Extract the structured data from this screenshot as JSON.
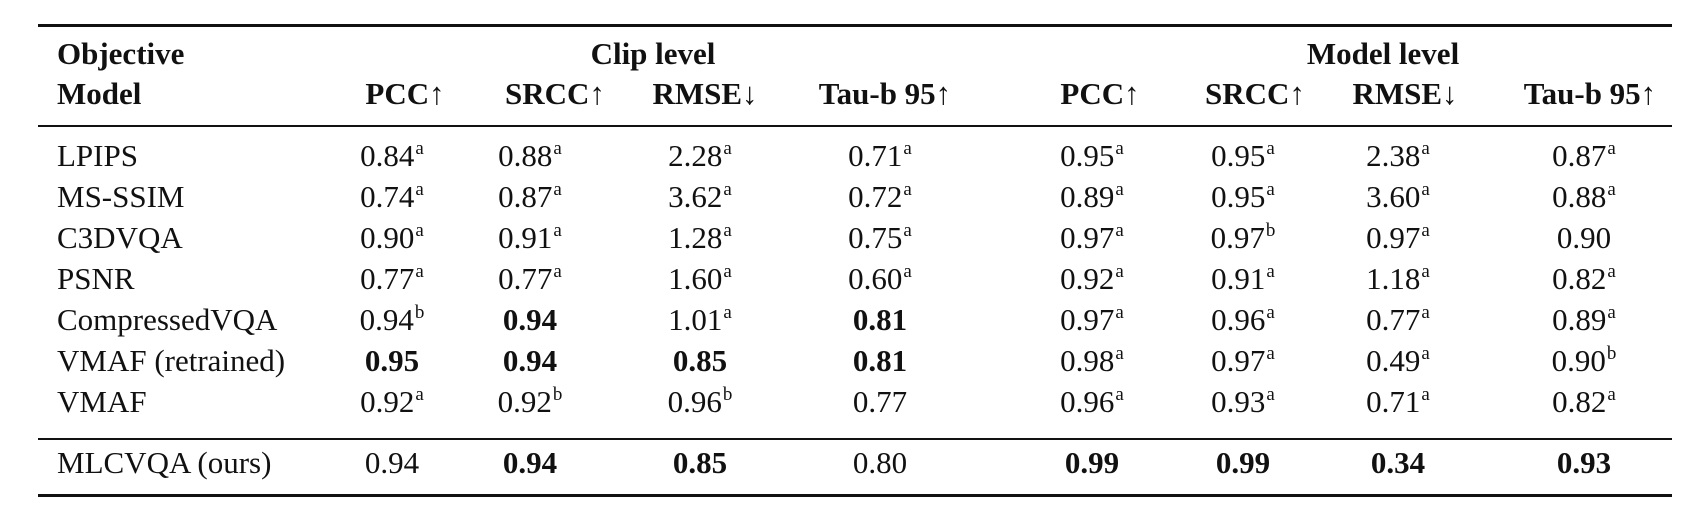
{
  "table": {
    "objective_label": "Objective",
    "model_label": "Model",
    "groups": [
      "Clip level",
      "Model level"
    ],
    "columns": [
      "PCC↑",
      "SRCC↑",
      "RMSE↓",
      "Tau-b 95↑",
      "PCC↑",
      "SRCC↑",
      "RMSE↓",
      "Tau-b 95↑"
    ],
    "rows": [
      {
        "model": "LPIPS",
        "cells": [
          {
            "v": "0.84",
            "s": "a",
            "b": false
          },
          {
            "v": "0.88",
            "s": "a",
            "b": false
          },
          {
            "v": "2.28",
            "s": "a",
            "b": false
          },
          {
            "v": "0.71",
            "s": "a",
            "b": false
          },
          {
            "v": "0.95",
            "s": "a",
            "b": false
          },
          {
            "v": "0.95",
            "s": "a",
            "b": false
          },
          {
            "v": "2.38",
            "s": "a",
            "b": false
          },
          {
            "v": "0.87",
            "s": "a",
            "b": false
          }
        ]
      },
      {
        "model": "MS-SSIM",
        "cells": [
          {
            "v": "0.74",
            "s": "a",
            "b": false
          },
          {
            "v": "0.87",
            "s": "a",
            "b": false
          },
          {
            "v": "3.62",
            "s": "a",
            "b": false
          },
          {
            "v": "0.72",
            "s": "a",
            "b": false
          },
          {
            "v": "0.89",
            "s": "a",
            "b": false
          },
          {
            "v": "0.95",
            "s": "a",
            "b": false
          },
          {
            "v": "3.60",
            "s": "a",
            "b": false
          },
          {
            "v": "0.88",
            "s": "a",
            "b": false
          }
        ]
      },
      {
        "model": "C3DVQA",
        "cells": [
          {
            "v": "0.90",
            "s": "a",
            "b": false
          },
          {
            "v": "0.91",
            "s": "a",
            "b": false
          },
          {
            "v": "1.28",
            "s": "a",
            "b": false
          },
          {
            "v": "0.75",
            "s": "a",
            "b": false
          },
          {
            "v": "0.97",
            "s": "a",
            "b": false
          },
          {
            "v": "0.97",
            "s": "b",
            "b": false
          },
          {
            "v": "0.97",
            "s": "a",
            "b": false
          },
          {
            "v": "0.90",
            "s": "",
            "b": false
          }
        ]
      },
      {
        "model": "PSNR",
        "cells": [
          {
            "v": "0.77",
            "s": "a",
            "b": false
          },
          {
            "v": "0.77",
            "s": "a",
            "b": false
          },
          {
            "v": "1.60",
            "s": "a",
            "b": false
          },
          {
            "v": "0.60",
            "s": "a",
            "b": false
          },
          {
            "v": "0.92",
            "s": "a",
            "b": false
          },
          {
            "v": "0.91",
            "s": "a",
            "b": false
          },
          {
            "v": "1.18",
            "s": "a",
            "b": false
          },
          {
            "v": "0.82",
            "s": "a",
            "b": false
          }
        ]
      },
      {
        "model": "CompressedVQA",
        "cells": [
          {
            "v": "0.94",
            "s": "b",
            "b": false
          },
          {
            "v": "0.94",
            "s": "",
            "b": true
          },
          {
            "v": "1.01",
            "s": "a",
            "b": false
          },
          {
            "v": "0.81",
            "s": "",
            "b": true
          },
          {
            "v": "0.97",
            "s": "a",
            "b": false
          },
          {
            "v": "0.96",
            "s": "a",
            "b": false
          },
          {
            "v": "0.77",
            "s": "a",
            "b": false
          },
          {
            "v": "0.89",
            "s": "a",
            "b": false
          }
        ]
      },
      {
        "model": "VMAF (retrained)",
        "cells": [
          {
            "v": "0.95",
            "s": "",
            "b": true
          },
          {
            "v": "0.94",
            "s": "",
            "b": true
          },
          {
            "v": "0.85",
            "s": "",
            "b": true
          },
          {
            "v": "0.81",
            "s": "",
            "b": true
          },
          {
            "v": "0.98",
            "s": "a",
            "b": false
          },
          {
            "v": "0.97",
            "s": "a",
            "b": false
          },
          {
            "v": "0.49",
            "s": "a",
            "b": false
          },
          {
            "v": "0.90",
            "s": "b",
            "b": false
          }
        ]
      },
      {
        "model": "VMAF",
        "cells": [
          {
            "v": "0.92",
            "s": "a",
            "b": false
          },
          {
            "v": "0.92",
            "s": "b",
            "b": false
          },
          {
            "v": "0.96",
            "s": "b",
            "b": false
          },
          {
            "v": "0.77",
            "s": "",
            "b": false
          },
          {
            "v": "0.96",
            "s": "a",
            "b": false
          },
          {
            "v": "0.93",
            "s": "a",
            "b": false
          },
          {
            "v": "0.71",
            "s": "a",
            "b": false
          },
          {
            "v": "0.82",
            "s": "a",
            "b": false
          }
        ]
      }
    ],
    "final_row": {
      "model": "MLCVQA (ours)",
      "cells": [
        {
          "v": "0.94",
          "s": "",
          "b": false
        },
        {
          "v": "0.94",
          "s": "",
          "b": true
        },
        {
          "v": "0.85",
          "s": "",
          "b": true
        },
        {
          "v": "0.80",
          "s": "",
          "b": false
        },
        {
          "v": "0.99",
          "s": "",
          "b": true
        },
        {
          "v": "0.99",
          "s": "",
          "b": true
        },
        {
          "v": "0.34",
          "s": "",
          "b": true
        },
        {
          "v": "0.93",
          "s": "",
          "b": true
        }
      ]
    }
  }
}
